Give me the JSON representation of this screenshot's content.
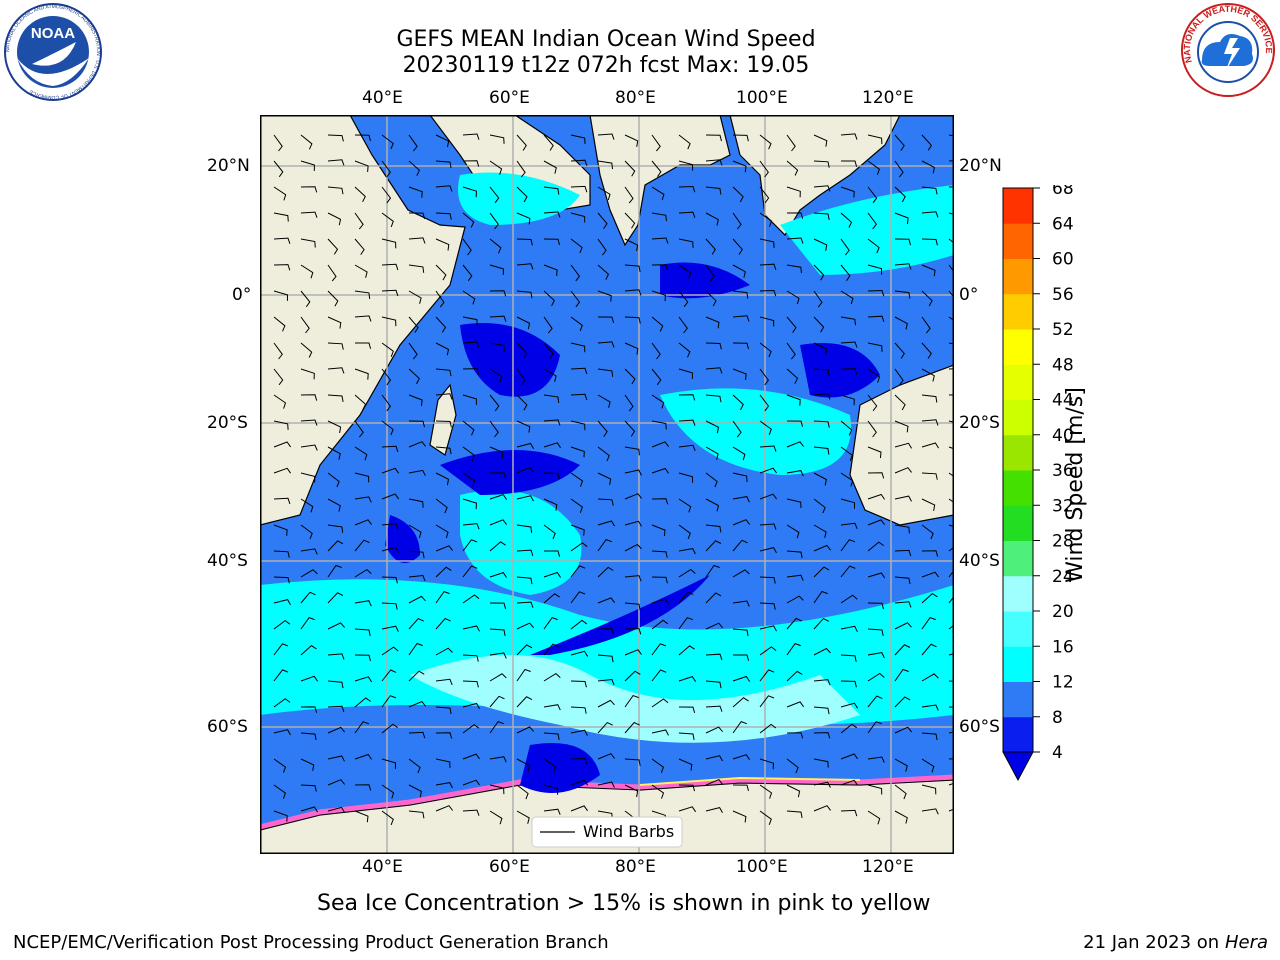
{
  "title": {
    "line1": "GEFS MEAN Indian Ocean Wind Speed",
    "line2": "20230119 t12z 072h fcst   Max: 19.05"
  },
  "axes": {
    "lon_labels": [
      "40°E",
      "60°E",
      "80°E",
      "100°E",
      "120°E"
    ],
    "lat_labels": [
      "20°N",
      "0°",
      "20°S",
      "40°S",
      "60°S"
    ],
    "lon_values": [
      40,
      60,
      80,
      100,
      120
    ],
    "lat_values": [
      20,
      0,
      -20,
      -40,
      -60
    ]
  },
  "colorbar": {
    "label": "Wind Speed [m/s]",
    "ticks": [
      "4",
      "8",
      "12",
      "16",
      "20",
      "24",
      "28",
      "32",
      "36",
      "40",
      "44",
      "48",
      "52",
      "56",
      "60",
      "64",
      "68"
    ],
    "colors": [
      "#0a1ef0",
      "#2e7bf5",
      "#00ffff",
      "#47ffff",
      "#9fffff",
      "#4ff07a",
      "#22dd22",
      "#44e000",
      "#9ae600",
      "#ccff00",
      "#e6ff00",
      "#ffff00",
      "#ffcc00",
      "#ff9900",
      "#ff6600",
      "#ff3300",
      "#ff0000"
    ],
    "under_color": "#0000e6"
  },
  "legend": {
    "label": "Wind Barbs"
  },
  "caption": "Sea Ice Concentration > 15% is shown in pink to yellow",
  "footer": {
    "left": "NCEP/EMC/Verification Post Processing Product Generation Branch",
    "right_prefix": "21 Jan 2023 on ",
    "right_host": "Hera"
  },
  "logos": {
    "noaa": "NOAA",
    "noaa_ring": "NATIONAL OCEANIC AND ATMOSPHERIC ADMINISTRATION · U.S. DEPARTMENT OF COMMERCE",
    "nws_ring": "NATIONAL WEATHER SERVICE"
  },
  "colors": {
    "land": "#efeedd",
    "ocean_low": "#0000e6",
    "ocean_mid": "#2e7bf5",
    "ocean_high": "#00ffff",
    "ocean_peak": "#9fffff",
    "grid": "#b0b0b0"
  }
}
